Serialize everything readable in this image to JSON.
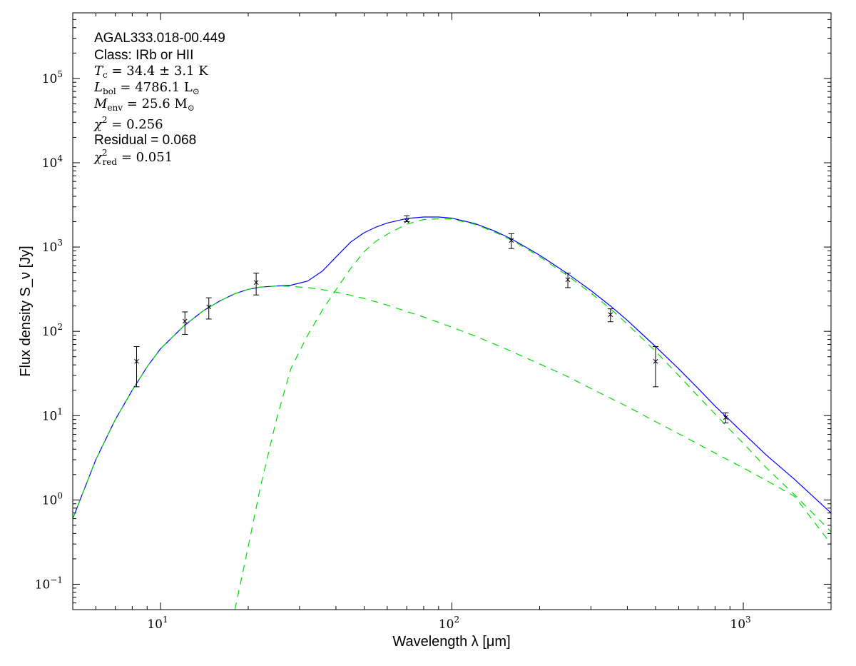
{
  "chart_data": {
    "type": "line",
    "xlabel": "Wavelength λ [μm]",
    "ylabel": "Flux density S_ν [Jy]",
    "xscale": "log",
    "yscale": "log",
    "xlim": [
      5,
      2000
    ],
    "ylim": [
      0.05,
      600000
    ],
    "grid": false,
    "x_ticks": [
      {
        "base": "10",
        "exp": "1"
      },
      {
        "base": "10",
        "exp": "2"
      },
      {
        "base": "10",
        "exp": "3"
      }
    ],
    "y_ticks": [
      {
        "base": "10",
        "exp": "−1"
      },
      {
        "base": "10",
        "exp": "0"
      },
      {
        "base": "10",
        "exp": "1"
      },
      {
        "base": "10",
        "exp": "2"
      },
      {
        "base": "10",
        "exp": "3"
      },
      {
        "base": "10",
        "exp": "4"
      },
      {
        "base": "10",
        "exp": "5"
      }
    ],
    "annotations": {
      "source": "AGAL333.018-00.449",
      "class": "Class: IRb or HII",
      "tc_sym": "T",
      "tc_sub": "c",
      "tc_val": " = 34.4 ± 3.1 K",
      "lbol_sym": "L",
      "lbol_sub": "bol",
      "lbol_val": " = 4786.1 L",
      "lbol_unit_sub": "⊙",
      "menv_sym": "M",
      "menv_sub": "env",
      "menv_val": " = 25.6 M",
      "menv_unit_sub": "⊙",
      "chi2_sym": "χ",
      "chi2_sup": "2",
      "chi2_val": " = 0.256",
      "residual": "Residual = 0.068",
      "chi2red_sym": "χ",
      "chi2red_sup": "2",
      "chi2red_sub": "red",
      "chi2red_val": " = 0.051"
    },
    "points": [
      {
        "x": 8.28,
        "y": 44,
        "ylo": 22,
        "yhi": 66
      },
      {
        "x": 12.13,
        "y": 132,
        "ylo": 92,
        "yhi": 170
      },
      {
        "x": 14.65,
        "y": 195,
        "ylo": 140,
        "yhi": 250
      },
      {
        "x": 21.3,
        "y": 380,
        "ylo": 270,
        "yhi": 490
      },
      {
        "x": 70,
        "y": 2050,
        "ylo": 2000,
        "yhi": 2350
      },
      {
        "x": 160,
        "y": 1200,
        "ylo": 960,
        "yhi": 1440
      },
      {
        "x": 250,
        "y": 410,
        "ylo": 330,
        "yhi": 490
      },
      {
        "x": 350,
        "y": 158,
        "ylo": 130,
        "yhi": 185
      },
      {
        "x": 500,
        "y": 44,
        "ylo": 22,
        "yhi": 66
      },
      {
        "x": 870,
        "y": 9.5,
        "ylo": 8.2,
        "yhi": 10.8
      }
    ],
    "series": [
      {
        "style": "solid",
        "color": "#0000ff",
        "x": [
          5,
          6,
          7,
          8,
          9,
          10,
          12,
          14,
          16,
          18,
          20,
          22,
          25,
          28,
          32,
          36,
          40,
          45,
          50,
          55,
          60,
          70,
          80,
          90,
          100,
          120,
          140,
          160,
          180,
          200,
          250,
          300,
          350,
          400,
          500,
          600,
          700,
          800,
          900,
          1000,
          1200,
          1500,
          2000
        ],
        "y": [
          0.6,
          3.0,
          9.0,
          20,
          38,
          62,
          115,
          175,
          230,
          280,
          315,
          335,
          345,
          352,
          395,
          520,
          760,
          1150,
          1480,
          1730,
          1930,
          2180,
          2270,
          2270,
          2200,
          1900,
          1550,
          1250,
          990,
          800,
          480,
          305,
          200,
          135,
          66,
          36,
          21,
          13,
          8.8,
          6.2,
          3.4,
          1.75,
          0.7
        ]
      },
      {
        "style": "dashed",
        "color": "#00dd00",
        "x": [
          18,
          20,
          22,
          25,
          28,
          32,
          36,
          40,
          45,
          50,
          55,
          60,
          70,
          80,
          90,
          100,
          120,
          140,
          160,
          180,
          200,
          250,
          300,
          350,
          400,
          500,
          600,
          700,
          800,
          900,
          1000,
          1200,
          1500,
          2000
        ],
        "y": [
          0.05,
          0.28,
          1.4,
          9,
          36,
          90,
          180,
          310,
          560,
          880,
          1180,
          1420,
          1870,
          2120,
          2160,
          2150,
          1860,
          1510,
          1210,
          960,
          770,
          455,
          285,
          185,
          122,
          58,
          30,
          17,
          10.5,
          6.8,
          4.7,
          2.4,
          1.15,
          0.42
        ]
      },
      {
        "style": "dashed",
        "color": "#00dd00",
        "x": [
          5,
          6,
          7,
          8,
          9,
          10,
          12,
          14,
          16,
          18,
          20,
          22,
          25,
          28,
          32,
          36,
          40,
          45,
          50,
          60,
          70,
          80,
          100,
          120,
          150,
          200,
          250,
          300,
          400,
          500,
          600,
          800,
          1000,
          1200,
          1500,
          2000
        ],
        "y": [
          0.6,
          3.0,
          9.0,
          20,
          38,
          62,
          115,
          175,
          230,
          280,
          315,
          335,
          345,
          342,
          330,
          312,
          292,
          268,
          245,
          205,
          172,
          148,
          112,
          88,
          64,
          41,
          29,
          21,
          12.8,
          8.5,
          6.1,
          3.6,
          2.4,
          1.7,
          1.1,
          0.3
        ]
      }
    ]
  }
}
